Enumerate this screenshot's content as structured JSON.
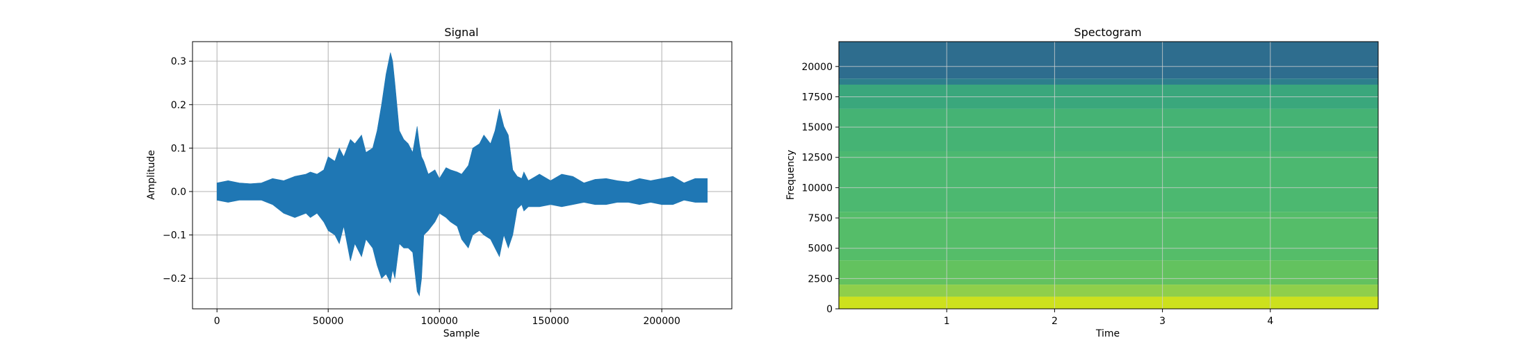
{
  "chart_data": [
    {
      "type": "area",
      "title": "Signal",
      "xlabel": "Sample",
      "ylabel": "Amplitude",
      "xlim": [
        -11000,
        231500
      ],
      "ylim": [
        -0.27,
        0.345
      ],
      "xticks": [
        0,
        50000,
        100000,
        150000,
        200000
      ],
      "xtick_labels": [
        "0",
        "50000",
        "100000",
        "150000",
        "200000"
      ],
      "yticks": [
        -0.2,
        -0.1,
        0.0,
        0.1,
        0.2,
        0.3
      ],
      "ytick_labels": [
        "−0.2",
        "−0.1",
        "0.0",
        "0.1",
        "0.2",
        "0.3"
      ],
      "grid": true,
      "series_color": "#1f77b4",
      "envelope": {
        "x": [
          0,
          5000,
          10000,
          15000,
          20000,
          25000,
          30000,
          35000,
          40000,
          42000,
          45000,
          48000,
          50000,
          53000,
          55000,
          57000,
          60000,
          62000,
          65000,
          67000,
          70000,
          72000,
          74000,
          76000,
          78000,
          79000,
          80000,
          82000,
          84000,
          86000,
          88000,
          90000,
          91000,
          92000,
          93000,
          95000,
          98000,
          100000,
          103000,
          105000,
          108000,
          110000,
          113000,
          115000,
          118000,
          120000,
          123000,
          125000,
          127000,
          129000,
          131000,
          133000,
          135000,
          137000,
          138000,
          140000,
          145000,
          150000,
          155000,
          160000,
          165000,
          170000,
          175000,
          180000,
          185000,
          190000,
          195000,
          200000,
          205000,
          210000,
          215000,
          220500
        ],
        "upper": [
          0.02,
          0.025,
          0.02,
          0.018,
          0.02,
          0.03,
          0.025,
          0.035,
          0.04,
          0.045,
          0.04,
          0.05,
          0.08,
          0.07,
          0.1,
          0.08,
          0.12,
          0.11,
          0.13,
          0.09,
          0.1,
          0.14,
          0.2,
          0.27,
          0.32,
          0.3,
          0.25,
          0.14,
          0.12,
          0.11,
          0.09,
          0.15,
          0.11,
          0.08,
          0.07,
          0.04,
          0.05,
          0.03,
          0.055,
          0.05,
          0.045,
          0.04,
          0.06,
          0.1,
          0.11,
          0.13,
          0.11,
          0.14,
          0.19,
          0.15,
          0.13,
          0.05,
          0.035,
          0.03,
          0.045,
          0.025,
          0.04,
          0.025,
          0.04,
          0.035,
          0.02,
          0.028,
          0.03,
          0.025,
          0.022,
          0.03,
          0.025,
          0.03,
          0.035,
          0.02,
          0.03,
          0.03
        ],
        "lower": [
          -0.02,
          -0.025,
          -0.02,
          -0.02,
          -0.02,
          -0.03,
          -0.05,
          -0.06,
          -0.05,
          -0.06,
          -0.05,
          -0.07,
          -0.09,
          -0.1,
          -0.12,
          -0.08,
          -0.16,
          -0.12,
          -0.15,
          -0.11,
          -0.13,
          -0.17,
          -0.2,
          -0.19,
          -0.21,
          -0.18,
          -0.2,
          -0.12,
          -0.13,
          -0.13,
          -0.14,
          -0.23,
          -0.24,
          -0.2,
          -0.1,
          -0.09,
          -0.07,
          -0.05,
          -0.06,
          -0.07,
          -0.08,
          -0.11,
          -0.13,
          -0.1,
          -0.09,
          -0.1,
          -0.11,
          -0.13,
          -0.15,
          -0.1,
          -0.13,
          -0.1,
          -0.04,
          -0.03,
          -0.045,
          -0.035,
          -0.035,
          -0.03,
          -0.035,
          -0.03,
          -0.025,
          -0.03,
          -0.03,
          -0.025,
          -0.025,
          -0.03,
          -0.025,
          -0.03,
          -0.03,
          -0.02,
          -0.025,
          -0.025
        ]
      }
    },
    {
      "type": "heatmap",
      "title": "Spectogram",
      "xlabel": "Time",
      "ylabel": "Frequency",
      "xlim": [
        0,
        5.0
      ],
      "ylim": [
        0,
        22050
      ],
      "xticks": [
        1,
        2,
        3,
        4
      ],
      "xtick_labels": [
        "1",
        "2",
        "3",
        "4"
      ],
      "yticks": [
        0,
        2500,
        5000,
        7500,
        10000,
        12500,
        15000,
        17500,
        20000
      ],
      "ytick_labels": [
        "0",
        "2500",
        "5000",
        "7500",
        "10000",
        "12500",
        "15000",
        "17500",
        "20000"
      ],
      "grid": true,
      "colormap": "viridis",
      "frequency_bands": {
        "top_hz": [
          22050,
          19000,
          18500,
          16500,
          13000,
          8000,
          4000,
          2000,
          1000
        ],
        "colors": [
          "#2e6d8e",
          "#2d7f8c",
          "#3aa77c",
          "#45b374",
          "#4cb870",
          "#55bd69",
          "#63c25f",
          "#8fcf4b",
          "#cde11d"
        ]
      }
    }
  ]
}
